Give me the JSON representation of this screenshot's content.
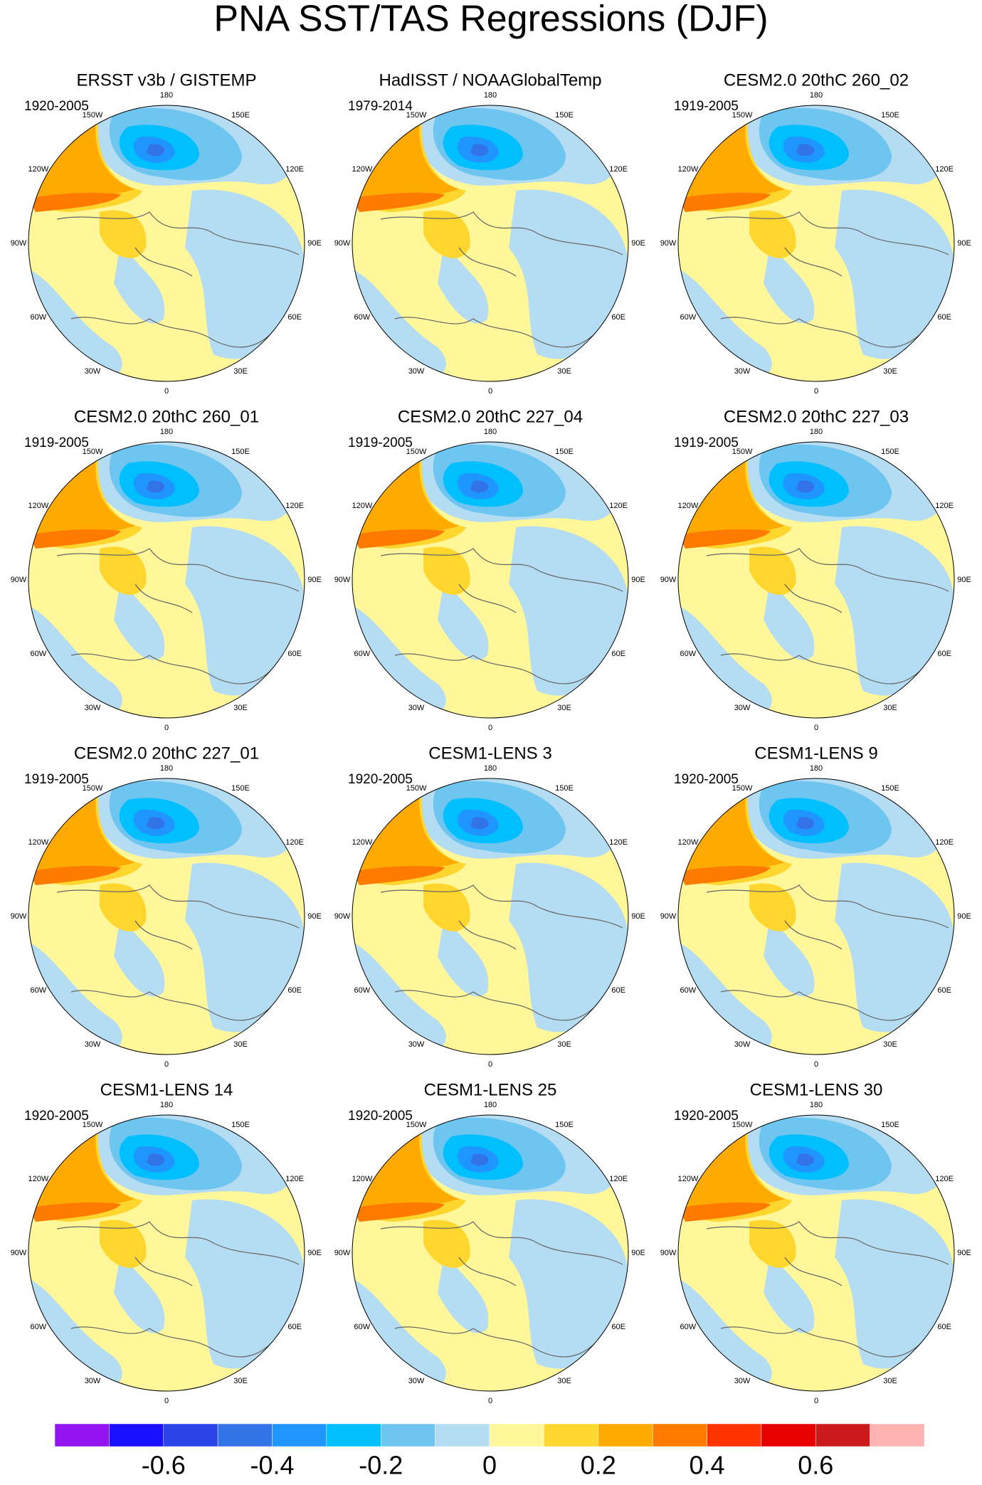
{
  "title": "PNA SST/TAS Regressions (DJF)",
  "panels": [
    {
      "title": "ERSST v3b / GISTEMP",
      "period": "1920-2005"
    },
    {
      "title": "HadISST / NOAAGlobalTemp",
      "period": "1979-2014"
    },
    {
      "title": "CESM2.0 20thC 260_02",
      "period": "1919-2005"
    },
    {
      "title": "CESM2.0 20thC 260_01",
      "period": "1919-2005"
    },
    {
      "title": "CESM2.0 20thC 227_04",
      "period": "1919-2005"
    },
    {
      "title": "CESM2.0 20thC 227_03",
      "period": "1919-2005"
    },
    {
      "title": "CESM2.0 20thC 227_01",
      "period": "1919-2005"
    },
    {
      "title": "CESM1-LENS 3",
      "period": "1920-2005"
    },
    {
      "title": "CESM1-LENS 9",
      "period": "1920-2005"
    },
    {
      "title": "CESM1-LENS 14",
      "period": "1920-2005"
    },
    {
      "title": "CESM1-LENS 25",
      "period": "1920-2005"
    },
    {
      "title": "CESM1-LENS 30",
      "period": "1920-2005"
    }
  ],
  "longitude_labels": [
    "180",
    "150E",
    "120E",
    "90E",
    "60E",
    "30E",
    "0",
    "30W",
    "60W",
    "90W",
    "120W",
    "150W"
  ],
  "colorbar": {
    "range": [
      -0.8,
      0.8
    ],
    "colors": [
      "#9314f0",
      "#1a0fff",
      "#2b44e8",
      "#3373e8",
      "#1f96ff",
      "#00bfff",
      "#6ec6f0",
      "#b4dcf2",
      "#fff799",
      "#ffd62e",
      "#ffaa00",
      "#ff7b00",
      "#ff3300",
      "#e60000",
      "#cc1a1a",
      "#ffb3b3"
    ],
    "ticks": [
      -0.6,
      -0.4,
      -0.2,
      0,
      0.2,
      0.4,
      0.6
    ]
  }
}
